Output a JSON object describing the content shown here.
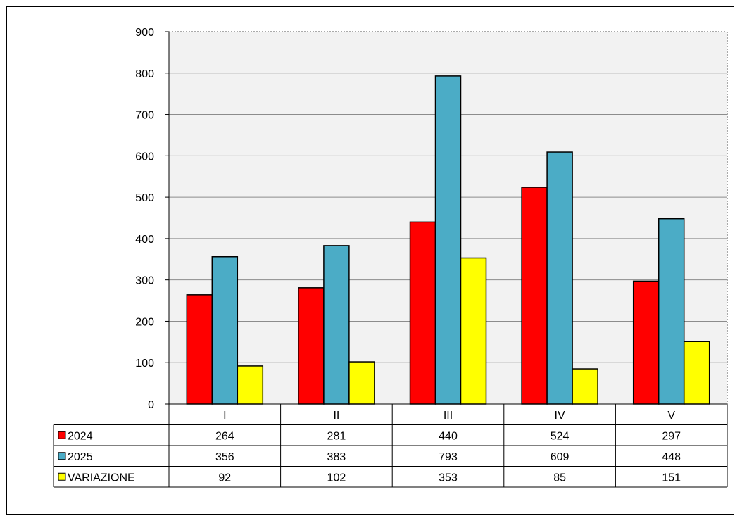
{
  "chart_data": {
    "type": "bar",
    "categories": [
      "I",
      "II",
      "III",
      "IV",
      "V"
    ],
    "series": [
      {
        "name": "2024",
        "color": "#ff0000",
        "values": [
          264,
          281,
          440,
          524,
          297
        ]
      },
      {
        "name": "2025",
        "color": "#4bacc6",
        "values": [
          356,
          383,
          793,
          609,
          448
        ]
      },
      {
        "name": "VARIAZIONE",
        "color": "#ffff00",
        "values": [
          92,
          102,
          353,
          85,
          151
        ]
      }
    ],
    "ylim": [
      0,
      900
    ],
    "yticks": [
      0,
      100,
      200,
      300,
      400,
      500,
      600,
      700,
      800,
      900
    ],
    "grid": true,
    "plot_background": "#f2f2f2",
    "legend": "data-table"
  }
}
